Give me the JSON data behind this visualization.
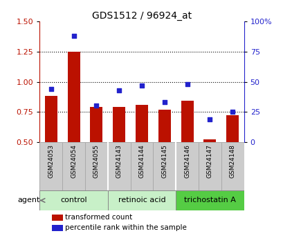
{
  "title": "GDS1512 / 96924_at",
  "samples": [
    "GSM24053",
    "GSM24054",
    "GSM24055",
    "GSM24143",
    "GSM24144",
    "GSM24145",
    "GSM24146",
    "GSM24147",
    "GSM24148"
  ],
  "red_values": [
    0.88,
    1.25,
    0.79,
    0.79,
    0.81,
    0.77,
    0.84,
    0.52,
    0.72
  ],
  "blue_pct": [
    44,
    88,
    30,
    43,
    47,
    33,
    48,
    19,
    25
  ],
  "groups": [
    {
      "label": "control",
      "indices": [
        0,
        1,
        2
      ],
      "color": "#c8f0c8"
    },
    {
      "label": "retinoic acid",
      "indices": [
        3,
        4,
        5
      ],
      "color": "#c8f0c8"
    },
    {
      "label": "trichostatin A",
      "indices": [
        6,
        7,
        8
      ],
      "color": "#55cc44"
    }
  ],
  "ylim_left": [
    0.5,
    1.5
  ],
  "ylim_right": [
    0,
    100
  ],
  "yticks_left": [
    0.5,
    0.75,
    1.0,
    1.25,
    1.5
  ],
  "yticks_right": [
    0,
    25,
    50,
    75,
    100
  ],
  "ytick_labels_right": [
    "0",
    "25",
    "50",
    "75",
    "100%"
  ],
  "bar_color": "#bb1100",
  "dot_color": "#2222cc",
  "sample_cell_color": "#cccccc",
  "sample_cell_edge": "#aaaaaa",
  "bg_color": "#ffffff",
  "grid_yticks": [
    0.75,
    1.0,
    1.25
  ]
}
